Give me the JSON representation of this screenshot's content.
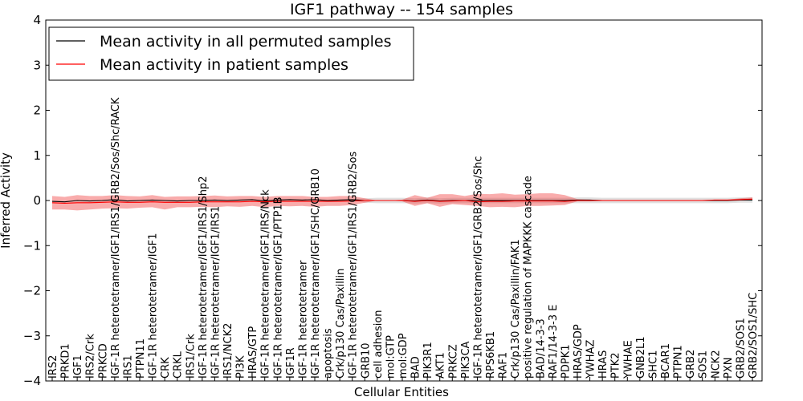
{
  "chart_data": {
    "type": "line",
    "title": "IGF1 pathway -- 154 samples",
    "xlabel": "Cellular Entities",
    "ylabel": "Inferred Activity",
    "ylim": [
      -4,
      4
    ],
    "yticks": [
      "4",
      "3",
      "2",
      "1",
      "0",
      "−1",
      "−2",
      "−3",
      "−4"
    ],
    "ytick_values": [
      4,
      3,
      2,
      1,
      0,
      -1,
      -2,
      -3,
      -4
    ],
    "legend": {
      "location": "upper-left",
      "entries": [
        {
          "label": "Mean activity in all permuted samples",
          "color": "#000000"
        },
        {
          "label": "Mean activity in patient samples",
          "color": "#ff0000"
        }
      ]
    },
    "categories": [
      "IRS2",
      "PRKD1",
      "IGF1",
      "IRS2/Crk",
      "PRKCD",
      "IGF-1R heterotetramer/IGF1/IRS1/GRB2/Sos/Shc/RACK",
      "IRS1",
      "PTPN11",
      "IGF-1R heterotetramer/IGF1",
      "CRK",
      "CRKL",
      "IRS1/Crk",
      "IGF-1R heterotetramer/IGF1/IRS1/Shp2",
      "IGF-1R heterotetramer/IGF1/IRS1",
      "IRS1/NCK2",
      "PI3K",
      "HRAS/GTP",
      "IGF-1R heterotetramer/IGF1/IRS/Nck",
      "IGF-1R heterotetramer/IGF1/PTP1B",
      "IGF1R",
      "IGF-1R heterotetramer",
      "IGF-1R heterotetramer/IGF1/SHC/GRB10",
      "apoptosis",
      "Crk/p130 Cas/Paxillin",
      "IGF-1R heterotetramer/IGF1/IRS1/GRB2/Sos",
      "GRB10",
      "cell adhesion",
      "mol:GTP",
      "mol:GDP",
      "BAD",
      "PIK3R1",
      "AKT1",
      "PRKCZ",
      "PIK3CA",
      "IGF-1R heterotetramer/IGF1/GRB2/Sos/Shc",
      "RPS6KB1",
      "RAF1",
      "Crk/p130 Cas/Paxillin/FAK1",
      "positive regulation of MAPKKK cascade",
      "BAD/14-3-3",
      "RAF1/14-3-3 E",
      "PDPK1",
      "HRAS/GDP",
      "YWHAZ",
      "HRAS",
      "PTK2",
      "YWHAE",
      "GNB2L1",
      "SHC1",
      "BCAR1",
      "PTPN1",
      "GRB2",
      "SOS1",
      "NCK2",
      "PXN",
      "GRB2/SOS1",
      "GRB2/SOS1/SHC"
    ],
    "series": [
      {
        "name": "Mean activity in all permuted samples",
        "color": "#000000",
        "values": [
          -0.02,
          -0.03,
          0.0,
          -0.01,
          0.0,
          0.02,
          -0.01,
          0.0,
          0.01,
          0.0,
          -0.01,
          0.0,
          0.0,
          0.01,
          0.0,
          0.01,
          0.02,
          -0.01,
          0.01,
          0.02,
          0.01,
          0.02,
          0.0,
          0.01,
          0.02,
          0.0,
          0.0,
          0.0,
          0.0,
          -0.01,
          0.01,
          -0.01,
          0.0,
          0.0,
          0.0,
          0.0,
          0.0,
          0.0,
          0.0,
          0.0,
          0.0,
          0.0,
          0.01,
          0.01,
          0.0,
          0.0,
          0.0,
          0.0,
          0.0,
          0.0,
          0.0,
          0.0,
          0.0,
          0.0,
          0.0,
          0.01,
          0.01
        ],
        "band_low": [
          -0.03,
          -0.04,
          -0.01,
          -0.02,
          -0.01,
          0.01,
          -0.02,
          -0.01,
          0.0,
          -0.01,
          -0.02,
          -0.01,
          -0.01,
          0.0,
          -0.01,
          0.0,
          0.01,
          -0.02,
          0.0,
          0.01,
          0.0,
          0.01,
          -0.01,
          0.0,
          0.01,
          -0.05,
          -0.06,
          -0.06,
          -0.06,
          -0.07,
          -0.06,
          -0.07,
          -0.06,
          -0.06,
          -0.06,
          -0.06,
          -0.06,
          -0.06,
          -0.06,
          -0.06,
          -0.06,
          -0.06,
          -0.06,
          -0.06,
          -0.06,
          -0.06,
          -0.06,
          -0.06,
          -0.06,
          -0.06,
          -0.06,
          -0.06,
          -0.06,
          -0.06,
          -0.06,
          -0.05,
          -0.05
        ],
        "band_high": [
          -0.01,
          -0.02,
          0.01,
          0.0,
          0.01,
          0.03,
          0.0,
          0.01,
          0.02,
          0.01,
          0.0,
          0.01,
          0.01,
          0.02,
          0.01,
          0.02,
          0.03,
          0.0,
          0.02,
          0.03,
          0.02,
          0.03,
          0.01,
          0.02,
          0.03,
          0.05,
          0.06,
          0.06,
          0.06,
          0.05,
          0.07,
          0.05,
          0.06,
          0.06,
          0.06,
          0.06,
          0.06,
          0.06,
          0.06,
          0.06,
          0.06,
          0.06,
          0.07,
          0.07,
          0.06,
          0.06,
          0.06,
          0.06,
          0.06,
          0.06,
          0.06,
          0.06,
          0.06,
          0.06,
          0.06,
          0.07,
          0.07
        ]
      },
      {
        "name": "Mean activity in patient samples",
        "color": "#ff0000",
        "values": [
          -0.05,
          -0.06,
          -0.05,
          -0.05,
          -0.04,
          -0.03,
          -0.04,
          -0.04,
          -0.03,
          -0.04,
          -0.04,
          -0.04,
          -0.03,
          -0.03,
          -0.03,
          -0.03,
          -0.02,
          -0.03,
          -0.02,
          -0.02,
          -0.02,
          -0.02,
          -0.02,
          -0.02,
          -0.01,
          0.0,
          0.0,
          0.0,
          0.0,
          -0.02,
          0.0,
          -0.02,
          -0.01,
          0.0,
          -0.03,
          -0.02,
          -0.02,
          -0.01,
          -0.01,
          -0.01,
          -0.01,
          -0.02,
          0.0,
          0.0,
          0.0,
          0.0,
          0.0,
          0.0,
          0.0,
          0.0,
          0.0,
          0.0,
          0.0,
          0.01,
          0.01,
          0.02,
          0.03
        ],
        "band_low": [
          -0.2,
          -0.2,
          -0.22,
          -0.2,
          -0.18,
          -0.17,
          -0.18,
          -0.16,
          -0.15,
          -0.2,
          -0.15,
          -0.15,
          -0.14,
          -0.15,
          -0.13,
          -0.14,
          -0.12,
          -0.15,
          -0.12,
          -0.13,
          -0.12,
          -0.14,
          -0.12,
          -0.12,
          -0.1,
          -0.05,
          0.0,
          0.0,
          -0.02,
          -0.12,
          -0.06,
          -0.14,
          -0.08,
          -0.1,
          -0.12,
          -0.15,
          -0.14,
          -0.15,
          -0.12,
          -0.12,
          -0.11,
          -0.1,
          -0.02,
          -0.02,
          -0.01,
          -0.01,
          -0.01,
          -0.01,
          -0.01,
          -0.01,
          -0.01,
          -0.01,
          -0.01,
          0.0,
          0.0,
          0.0,
          0.01
        ],
        "band_high": [
          0.1,
          0.08,
          0.12,
          0.1,
          0.1,
          0.12,
          0.1,
          0.09,
          0.12,
          0.08,
          0.09,
          0.09,
          0.1,
          0.11,
          0.09,
          0.1,
          0.1,
          0.08,
          0.1,
          0.1,
          0.1,
          0.08,
          0.08,
          0.1,
          0.1,
          0.05,
          0.0,
          0.0,
          0.02,
          0.12,
          0.06,
          0.14,
          0.14,
          0.1,
          0.15,
          0.14,
          0.16,
          0.13,
          0.14,
          0.16,
          0.16,
          0.12,
          0.03,
          0.02,
          0.01,
          0.01,
          0.01,
          0.01,
          0.01,
          0.01,
          0.01,
          0.01,
          0.01,
          0.02,
          0.02,
          0.05,
          0.07
        ]
      }
    ]
  }
}
